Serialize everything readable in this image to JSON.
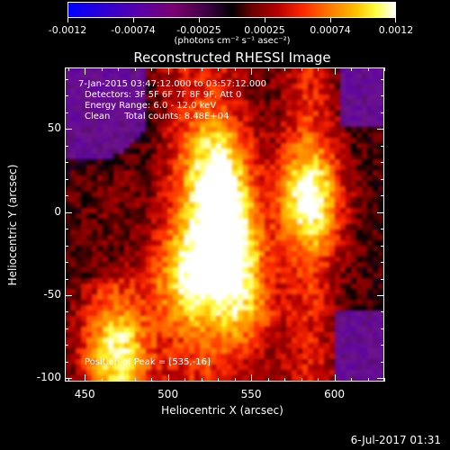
{
  "colorbar": {
    "tick_labels": [
      "-0.0012",
      "-0.00074",
      "-0.00025",
      "0.00025",
      "0.00074",
      "0.0012"
    ],
    "units": "(photons cm⁻² s⁻¹ asec⁻²)"
  },
  "title": "Reconstructed RHESSI Image",
  "annotations": {
    "time_range": "7-Jan-2015 03:47:12.000 to 03:57:12.000",
    "detectors": "Detectors: 3F 5F 6F 7F 8F 9F, Att 0",
    "energy_range": "Energy Range: 6.0 - 12.0 keV",
    "clean_counts": "Clean     Total counts: 8.48E+04",
    "peak_position": "Position of Peak = [535,-16]"
  },
  "axes": {
    "xlabel": "Heliocentric X (arcsec)",
    "ylabel": "Heliocentric Y (arcsec)",
    "x_ticks": [
      "450",
      "500",
      "550",
      "600"
    ],
    "y_ticks": [
      "50",
      "0",
      "-50",
      "-100"
    ],
    "xlim": [
      438,
      630
    ],
    "ylim": [
      -102,
      87
    ]
  },
  "datestamp": "6-Jul-2017 01:31",
  "image": {
    "peak": [
      535,
      -16
    ],
    "sources": [
      {
        "x": 535,
        "y": -16,
        "intensity": 1.0
      },
      {
        "x": 530,
        "y": 25,
        "intensity": 0.75
      },
      {
        "x": 585,
        "y": 8,
        "intensity": 0.8
      },
      {
        "x": 470,
        "y": -85,
        "intensity": 0.75
      },
      {
        "x": 545,
        "y": -55,
        "intensity": 0.6
      },
      {
        "x": 510,
        "y": -40,
        "intensity": 0.6
      }
    ]
  }
}
